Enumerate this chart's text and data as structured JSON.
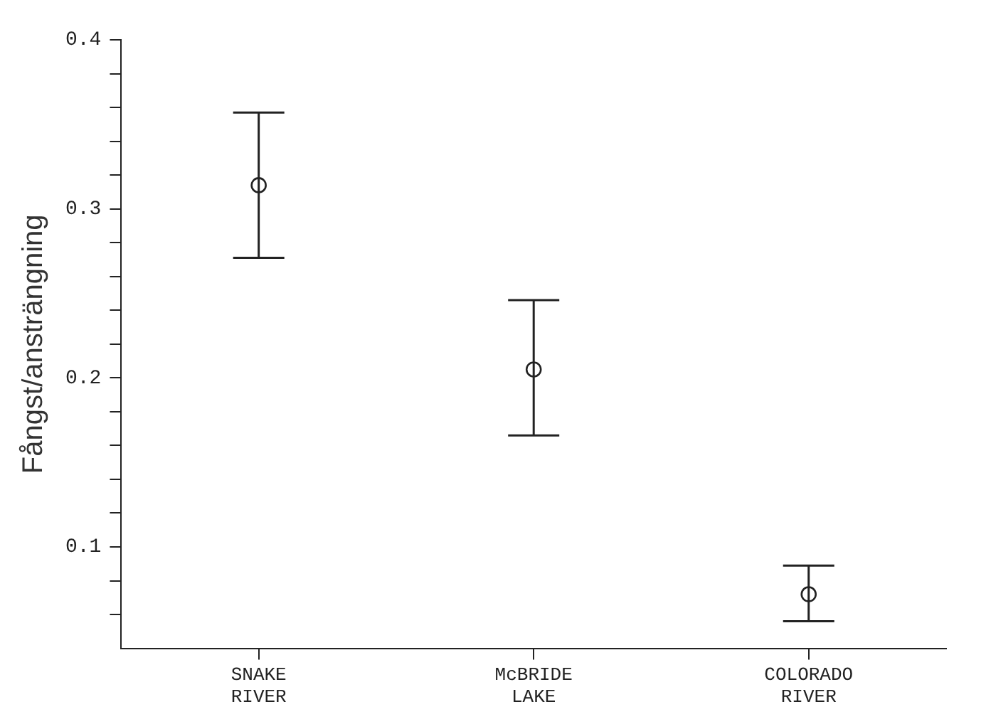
{
  "chart_data": {
    "type": "scatter",
    "ylabel": "Fångst/ansträngning",
    "categories": [
      "SNAKE RIVER",
      "McBRIDE LAKE",
      "COLORADO RIVER"
    ],
    "values": [
      0.314,
      0.205,
      0.072
    ],
    "errors": [
      [
        0.271,
        0.357
      ],
      [
        0.166,
        0.246
      ],
      [
        0.056,
        0.089
      ]
    ],
    "color": "#222222",
    "marker": "circle",
    "grid": false,
    "legend": false,
    "ylim": [
      0.04,
      0.4
    ],
    "yticks": [
      {
        "value": 0.06,
        "label": null
      },
      {
        "value": 0.08,
        "label": null
      },
      {
        "value": 0.1,
        "label": "0.1"
      },
      {
        "value": 0.12,
        "label": null
      },
      {
        "value": 0.14,
        "label": null
      },
      {
        "value": 0.16,
        "label": null
      },
      {
        "value": 0.18,
        "label": null
      },
      {
        "value": 0.2,
        "label": "0.2"
      },
      {
        "value": 0.22,
        "label": null
      },
      {
        "value": 0.24,
        "label": null
      },
      {
        "value": 0.26,
        "label": null
      },
      {
        "value": 0.28,
        "label": null
      },
      {
        "value": 0.3,
        "label": "0.3"
      },
      {
        "value": 0.32,
        "label": null
      },
      {
        "value": 0.34,
        "label": null
      },
      {
        "value": 0.36,
        "label": null
      },
      {
        "value": 0.38,
        "label": null
      },
      {
        "value": 0.4,
        "label": "0.4"
      }
    ]
  }
}
